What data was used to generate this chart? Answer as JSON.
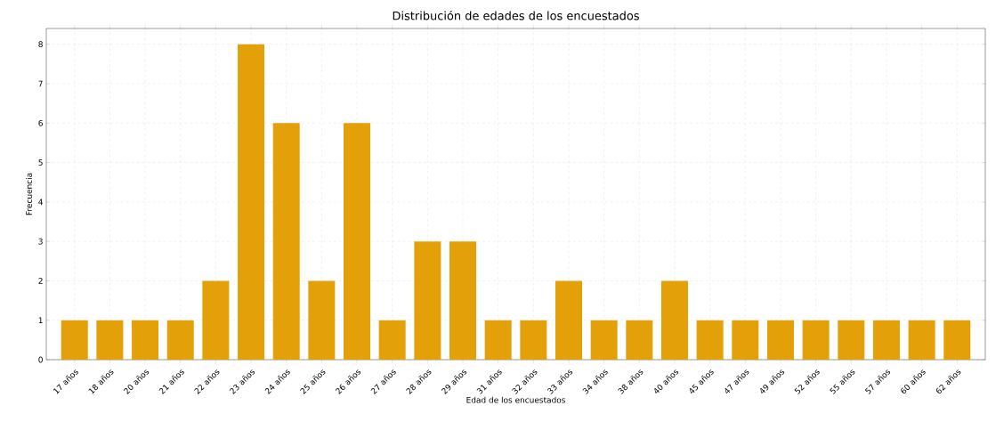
{
  "chart_data": {
    "type": "bar",
    "title": "Distribución de edades de los encuestados",
    "xlabel": "Edad de los encuestados",
    "ylabel": "Frecuencia",
    "categories": [
      "17 años",
      "18 años",
      "20 años",
      "21 años",
      "22 años",
      "23 años",
      "24 años",
      "25 años",
      "26 años",
      "27 años",
      "28 años",
      "29 años",
      "31 años",
      "32 años",
      "33 años",
      "34 años",
      "38 años",
      "40 años",
      "45 años",
      "47 años",
      "49 años",
      "52 años",
      "55 años",
      "57 años",
      "60 años",
      "62 años"
    ],
    "values": [
      1,
      1,
      1,
      1,
      2,
      8,
      6,
      2,
      6,
      1,
      3,
      3,
      1,
      1,
      2,
      1,
      1,
      2,
      1,
      1,
      1,
      1,
      1,
      1,
      1,
      1
    ],
    "color": "#e3a008",
    "ylim": [
      0,
      8.4
    ],
    "yticks": [
      0,
      1,
      2,
      3,
      4,
      5,
      6,
      7,
      8
    ],
    "grid": true
  }
}
